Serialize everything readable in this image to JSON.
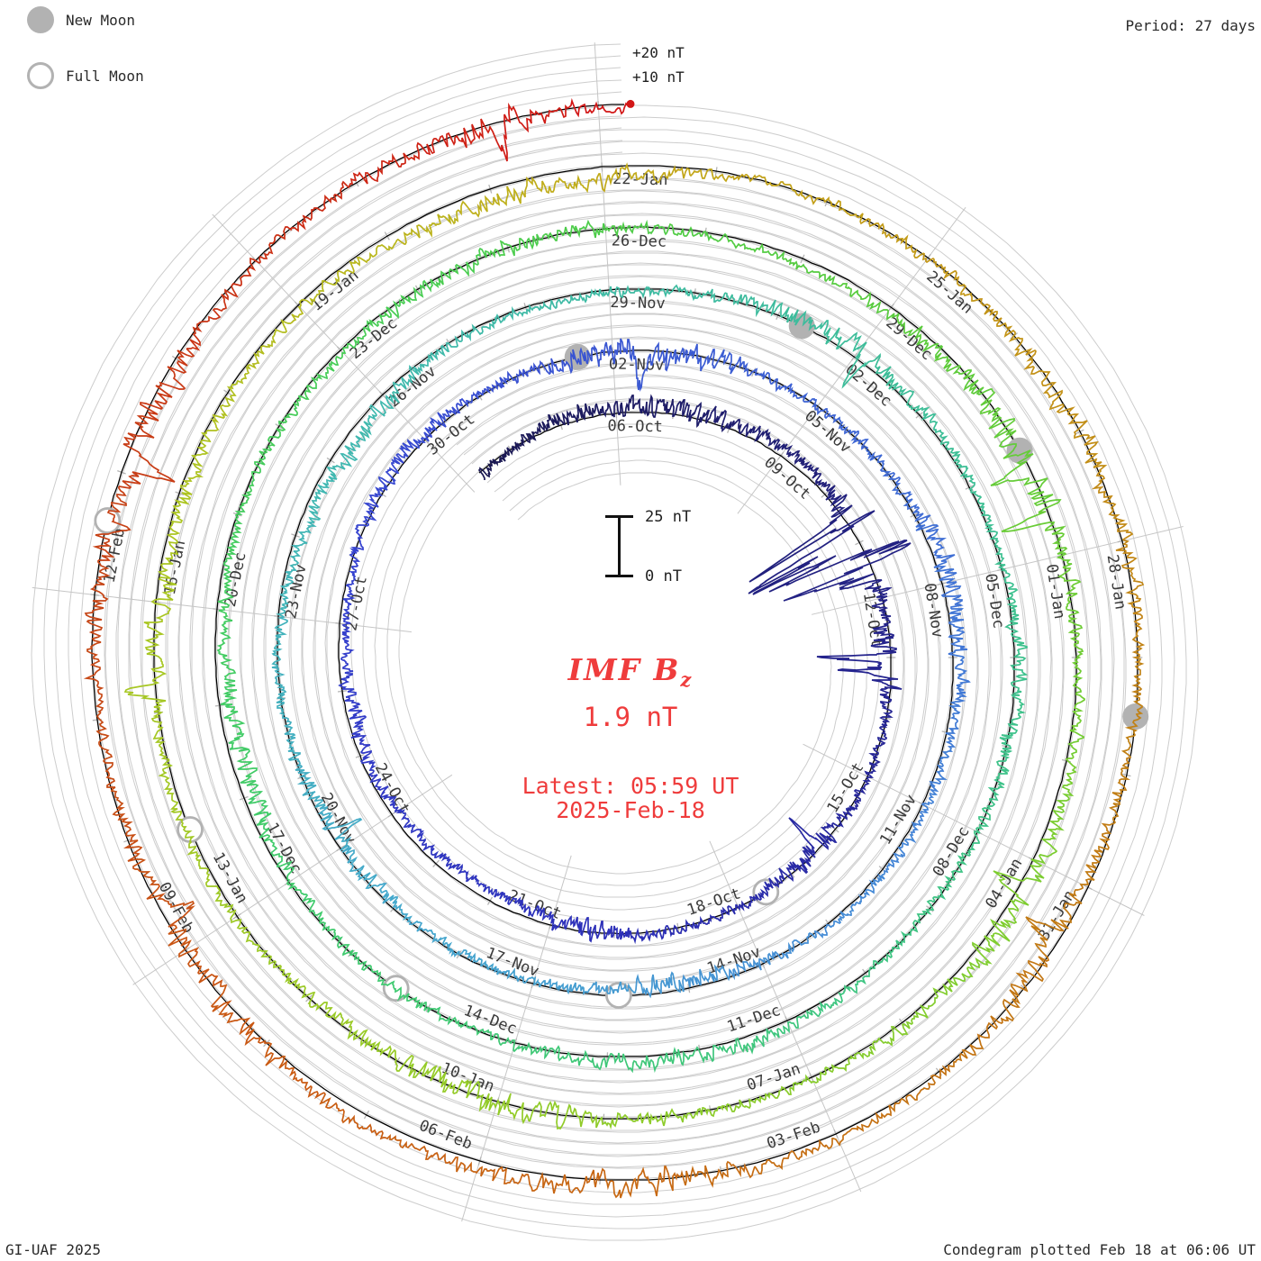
{
  "legend": {
    "new_moon": "New Moon",
    "full_moon": "Full Moon"
  },
  "period_label": "Period: 27 days",
  "footer": {
    "left": "GI-UAF 2025",
    "right": "Condegram plotted Feb 18 at 06:06 UT"
  },
  "outer_scale_labels": {
    "plus20": "+20 nT",
    "plus10": "+10 nT"
  },
  "scale_bar": {
    "top": "25 nT",
    "bottom": "0 nT"
  },
  "center": {
    "title_main": "IMF B",
    "title_sub": "z",
    "value": "1.9 nT",
    "latest_line1": "Latest: 05:59 UT",
    "latest_line2": "2025-Feb-18"
  },
  "chart_data": {
    "type": "line (polar spiral condegram)",
    "title": "IMF Bz",
    "current_value_nT": 1.9,
    "latest_time": "Latest: 05:59 UT",
    "latest_date": "2025-Feb-18",
    "rotation_period_days": 27,
    "days_per_label": 3,
    "gridline_step_nT": 5,
    "scale_reference_nT": [
      0,
      25
    ],
    "outer_axis_labels_nT": [
      10,
      20
    ],
    "legend": [
      "New Moon",
      "Full Moon"
    ],
    "date_labels": [
      [
        "06-Oct",
        0
      ],
      [
        "09-Oct",
        3
      ],
      [
        "12-Oct",
        6
      ],
      [
        "15-Oct",
        9
      ],
      [
        "18-Oct",
        12
      ],
      [
        "21-Oct",
        15
      ],
      [
        "24-Oct",
        18
      ],
      [
        "27-Oct",
        21
      ],
      [
        "30-Oct",
        24
      ],
      [
        "02-Nov",
        27
      ],
      [
        "05-Nov",
        30
      ],
      [
        "08-Nov",
        33
      ],
      [
        "11-Nov",
        36
      ],
      [
        "14-Nov",
        39
      ],
      [
        "17-Nov",
        42
      ],
      [
        "20-Nov",
        45
      ],
      [
        "23-Nov",
        48
      ],
      [
        "26-Nov",
        51
      ],
      [
        "29-Nov",
        54
      ],
      [
        "02-Dec",
        57
      ],
      [
        "05-Dec",
        60
      ],
      [
        "08-Dec",
        63
      ],
      [
        "11-Dec",
        66
      ],
      [
        "14-Dec",
        69
      ],
      [
        "17-Dec",
        72
      ],
      [
        "20-Dec",
        75
      ],
      [
        "23-Dec",
        78
      ],
      [
        "26-Dec",
        81
      ],
      [
        "29-Dec",
        84
      ],
      [
        "01-Jan",
        87
      ],
      [
        "04-Jan",
        90
      ],
      [
        "07-Jan",
        93
      ],
      [
        "10-Jan",
        96
      ],
      [
        "13-Jan",
        99
      ],
      [
        "16-Jan",
        102
      ],
      [
        "19-Jan",
        105
      ],
      [
        "22-Jan",
        108
      ],
      [
        "25-Jan",
        111
      ],
      [
        "28-Jan",
        114
      ],
      [
        "31-Jan",
        117
      ],
      [
        "03-Feb",
        120
      ],
      [
        "06-Feb",
        123
      ],
      [
        "09-Feb",
        126
      ],
      [
        "12-Feb",
        129
      ]
    ],
    "moon_events": [
      [
        "full",
        11.5
      ],
      [
        "new",
        26.5
      ],
      [
        "full",
        40.9
      ],
      [
        "new",
        56.3
      ],
      [
        "full",
        70.4
      ],
      [
        "new",
        85.9
      ],
      [
        "full",
        99.9
      ],
      [
        "new",
        115.5
      ],
      [
        "full",
        129.6
      ]
    ],
    "colors": {
      "moon_gray": "#b2b2b2",
      "grid_gray": "#cdcdcd",
      "radial_gray": "#c6c6c6",
      "baseline_black": "#000000",
      "accent_red": "#ef3c3c",
      "trace_stops": [
        [
          -3,
          "#1a1850"
        ],
        [
          6,
          "#232287"
        ],
        [
          14,
          "#2c2fb8"
        ],
        [
          22,
          "#3542cf"
        ],
        [
          30,
          "#3d63d4"
        ],
        [
          38,
          "#458cd6"
        ],
        [
          44,
          "#44a8cc"
        ],
        [
          50,
          "#40b8b0"
        ],
        [
          57,
          "#3dbd9a"
        ],
        [
          64,
          "#3ec484"
        ],
        [
          72,
          "#40cb6c"
        ],
        [
          79,
          "#48cd52"
        ],
        [
          84,
          "#58cb3c"
        ],
        [
          90,
          "#7ccd30"
        ],
        [
          97,
          "#97cb27"
        ],
        [
          103,
          "#adc521"
        ],
        [
          108,
          "#c2ab1a"
        ],
        [
          112,
          "#c39317"
        ],
        [
          116,
          "#c17f15"
        ],
        [
          121,
          "#c66c13"
        ],
        [
          125,
          "#ca5a13"
        ],
        [
          129,
          "#c64617"
        ],
        [
          132,
          "#cb3014"
        ],
        [
          135.3,
          "#d21616"
        ]
      ]
    },
    "render": {
      "seed": 11,
      "day_start": -2.7,
      "day_end": 135.25,
      "storms": [
        [
          -2.7,
          3.5,
          3.5
        ],
        [
          4.2,
          5.9,
          26
        ],
        [
          6.3,
          7.8,
          11
        ],
        [
          9.5,
          11.5,
          4.5
        ],
        [
          13,
          16,
          2.5
        ],
        [
          18,
          21,
          2.2
        ],
        [
          22,
          25,
          2.5
        ],
        [
          25.5,
          29.5,
          5.5
        ],
        [
          31,
          35,
          4
        ],
        [
          38.5,
          41.5,
          3.5
        ],
        [
          43.5,
          46.5,
          3.5
        ],
        [
          49,
          52,
          3
        ],
        [
          55,
          58.5,
          4
        ],
        [
          60,
          63,
          2.8
        ],
        [
          65.5,
          69,
          3.2
        ],
        [
          71.5,
          75.5,
          3.4
        ],
        [
          78,
          81.5,
          3
        ],
        [
          84,
          88,
          6.5
        ],
        [
          89,
          92.5,
          4.2
        ],
        [
          94,
          98,
          4.8
        ],
        [
          100,
          104,
          3.8
        ],
        [
          105.5,
          109.5,
          4
        ],
        [
          111,
          115,
          3.8
        ],
        [
          116,
          119.5,
          4.2
        ],
        [
          120,
          123.5,
          5
        ],
        [
          124,
          127.5,
          5
        ],
        [
          128,
          132,
          6.5
        ],
        [
          132.5,
          135.3,
          5
        ]
      ],
      "spikes": [
        [
          4.55,
          0.05,
          -42
        ],
        [
          4.68,
          0.03,
          20
        ],
        [
          4.82,
          0.06,
          -47
        ],
        [
          4.95,
          0.04,
          -26
        ],
        [
          5.12,
          0.05,
          -40
        ],
        [
          5.3,
          0.04,
          16
        ],
        [
          5.48,
          0.05,
          -34
        ],
        [
          5.62,
          0.03,
          -20
        ],
        [
          7.0,
          0.05,
          -24
        ],
        [
          7.25,
          0.04,
          -17
        ],
        [
          10.4,
          0.04,
          -12
        ],
        [
          27.4,
          0.06,
          -13
        ],
        [
          45.2,
          0.05,
          -11
        ],
        [
          57.1,
          0.04,
          -12
        ],
        [
          86.1,
          0.05,
          -17
        ],
        [
          86.6,
          0.04,
          -20
        ],
        [
          90.3,
          0.05,
          -14
        ],
        [
          101.2,
          0.04,
          12
        ],
        [
          117.5,
          0.05,
          -12
        ],
        [
          126.3,
          0.05,
          -14
        ],
        [
          130.1,
          0.05,
          -15
        ],
        [
          134.2,
          0.04,
          -12
        ]
      ]
    }
  }
}
